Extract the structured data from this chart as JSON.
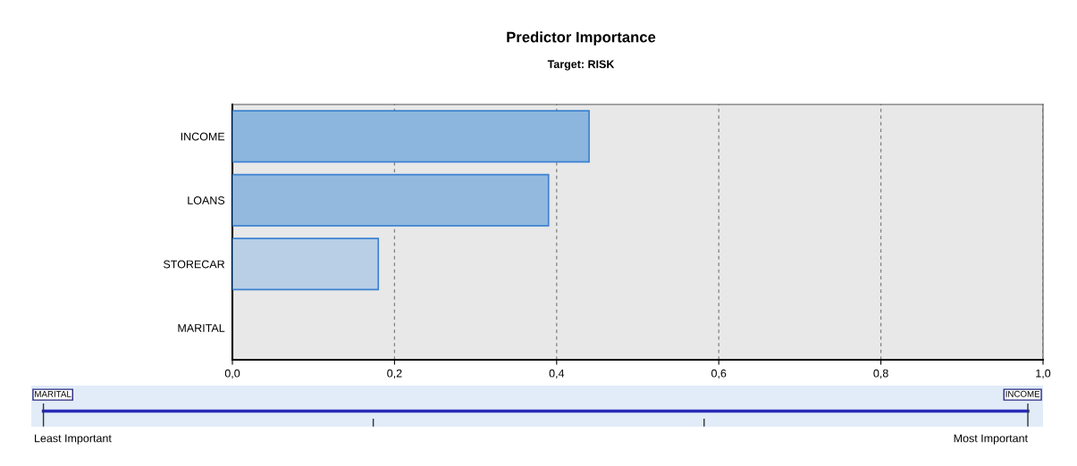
{
  "chart_data": {
    "type": "bar",
    "orientation": "horizontal",
    "title": "Predictor Importance",
    "subtitle": "Target: RISK",
    "categories": [
      "INCOME",
      "LOANS",
      "STORECAR",
      "MARITAL"
    ],
    "values": [
      0.44,
      0.39,
      0.18,
      0
    ],
    "colors": [
      "#8cb6dd",
      "#93b9df",
      "#b8cfe6",
      "#b8cfe6"
    ],
    "xlim": [
      0,
      1
    ],
    "xticks": [
      {
        "value": 0,
        "label": "0,0"
      },
      {
        "value": 0.2,
        "label": "0,2"
      },
      {
        "value": 0.4,
        "label": "0,4"
      },
      {
        "value": 0.6,
        "label": "0,6"
      },
      {
        "value": 0.8,
        "label": "0,8"
      },
      {
        "value": 1,
        "label": "1,0"
      }
    ],
    "grid": "x",
    "annotations": [
      "MARITAL",
      "INCOME",
      "Least Important",
      "Most Important"
    ]
  }
}
